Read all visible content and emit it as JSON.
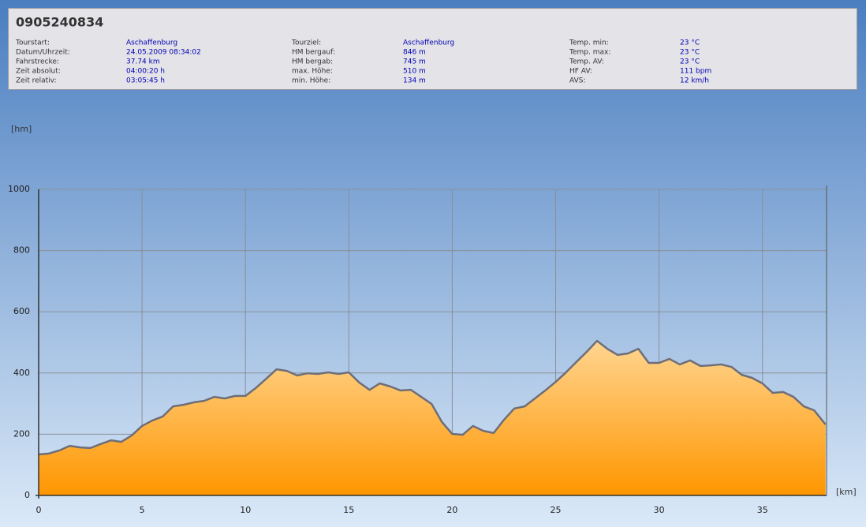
{
  "info": {
    "title": "0905240834",
    "groups": [
      {
        "rows": [
          {
            "label": "Tourstart:",
            "value": "Aschaffenburg"
          },
          {
            "label": "Datum/Uhrzeit:",
            "value": "24.05.2009 08:34:02"
          },
          {
            "label": "Fahrstrecke:",
            "value": "37.74 km"
          },
          {
            "label": "Zeit absolut:",
            "value": "04:00:20 h"
          },
          {
            "label": "Zeit relativ:",
            "value": "03:05:45 h"
          }
        ]
      },
      {
        "rows": [
          {
            "label": "Tourziel:",
            "value": "Aschaffenburg"
          },
          {
            "label": "HM bergauf:",
            "value": "846 m"
          },
          {
            "label": "HM bergab:",
            "value": "745 m"
          },
          {
            "label": "max. Höhe:",
            "value": "510 m"
          },
          {
            "label": "min. Höhe:",
            "value": "134 m"
          }
        ]
      },
      {
        "rows": [
          {
            "label": "Temp. min:",
            "value": "23 °C"
          },
          {
            "label": "Temp. max:",
            "value": "23 °C"
          },
          {
            "label": "Temp. AV:",
            "value": "23 °C"
          },
          {
            "label": "HF AV:",
            "value": "111 bpm"
          },
          {
            "label": "AVS:",
            "value": "12 km/h"
          }
        ]
      }
    ]
  },
  "chart_data": {
    "type": "area",
    "y_label": "[hm]",
    "x_label": "[km]",
    "x": [
      0,
      0.5,
      1,
      1.5,
      2,
      2.5,
      3,
      3.5,
      4,
      4.5,
      5,
      5.5,
      6,
      6.5,
      7,
      7.5,
      8,
      8.5,
      9,
      9.5,
      10,
      10.5,
      11,
      11.5,
      12,
      12.5,
      13,
      13.5,
      14,
      14.5,
      15,
      15.5,
      16,
      16.5,
      17,
      17.5,
      18,
      18.5,
      19,
      19.5,
      20,
      20.5,
      21,
      21.5,
      22,
      22.5,
      23,
      23.5,
      24,
      24.5,
      25,
      25.5,
      26,
      26.5,
      27,
      27.5,
      28,
      28.5,
      29,
      29.5,
      30,
      30.5,
      31,
      31.5,
      32,
      32.5,
      33,
      33.5,
      34,
      34.5,
      35,
      35.5,
      36,
      36.5,
      37,
      37.5,
      38.05
    ],
    "values": [
      134,
      137,
      147,
      162,
      157,
      155,
      168,
      180,
      175,
      196,
      227,
      245,
      258,
      291,
      296,
      304,
      309,
      322,
      317,
      325,
      325,
      351,
      381,
      412,
      407,
      392,
      399,
      397,
      402,
      397,
      402,
      369,
      345,
      366,
      356,
      343,
      345,
      322,
      299,
      240,
      201,
      198,
      227,
      211,
      204,
      247,
      284,
      291,
      317,
      343,
      371,
      402,
      436,
      469,
      505,
      479,
      459,
      464,
      479,
      433,
      433,
      446,
      428,
      441,
      423,
      425,
      428,
      420,
      394,
      384,
      366,
      335,
      338,
      322,
      291,
      278,
      232
    ],
    "xlim": [
      0,
      38.1
    ],
    "ylim": [
      0,
      1000
    ],
    "xticks": [
      0,
      5,
      10,
      15,
      20,
      25,
      30,
      35
    ],
    "yticks": [
      0,
      200,
      400,
      600,
      800,
      1000
    ],
    "grid": true,
    "color": "#ff9900",
    "line_color": "#6e6e78"
  }
}
